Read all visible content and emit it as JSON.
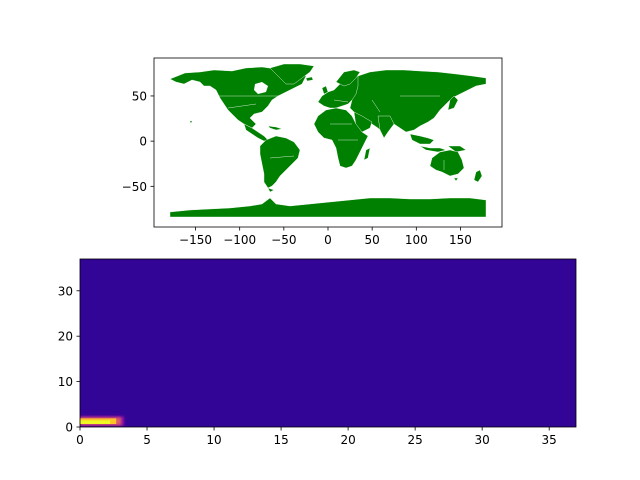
{
  "chart_data": [
    {
      "type": "map",
      "title": "",
      "xlabel": "",
      "ylabel": "",
      "xlim": [
        -197,
        197
      ],
      "ylim": [
        -95,
        92
      ],
      "xticks": [
        -150,
        -100,
        -50,
        0,
        50,
        100,
        150
      ],
      "xtick_labels": [
        "−150",
        "−100",
        "−50",
        "0",
        "50",
        "100",
        "150"
      ],
      "yticks": [
        -50,
        0,
        50
      ],
      "ytick_labels": [
        "−50",
        "0",
        "50"
      ],
      "land_color": "#008000",
      "border_color": "#ffffff"
    },
    {
      "type": "heatmap",
      "title": "",
      "xlabel": "",
      "ylabel": "",
      "xlim": [
        0,
        37
      ],
      "ylim": [
        0,
        37
      ],
      "xticks": [
        0,
        5,
        10,
        15,
        20,
        25,
        30,
        35
      ],
      "xtick_labels": [
        "0",
        "5",
        "10",
        "15",
        "20",
        "25",
        "30",
        "35"
      ],
      "yticks": [
        0,
        10,
        20,
        30
      ],
      "ytick_labels": [
        "0",
        "10",
        "20",
        "30"
      ],
      "background_color": "#330597",
      "colormap": [
        "#330597",
        "#8b0aa5",
        "#db5c68",
        "#fdc328",
        "#f0f921"
      ],
      "hotspot": {
        "x": [
          0,
          3
        ],
        "y": [
          0,
          3
        ]
      }
    }
  ]
}
